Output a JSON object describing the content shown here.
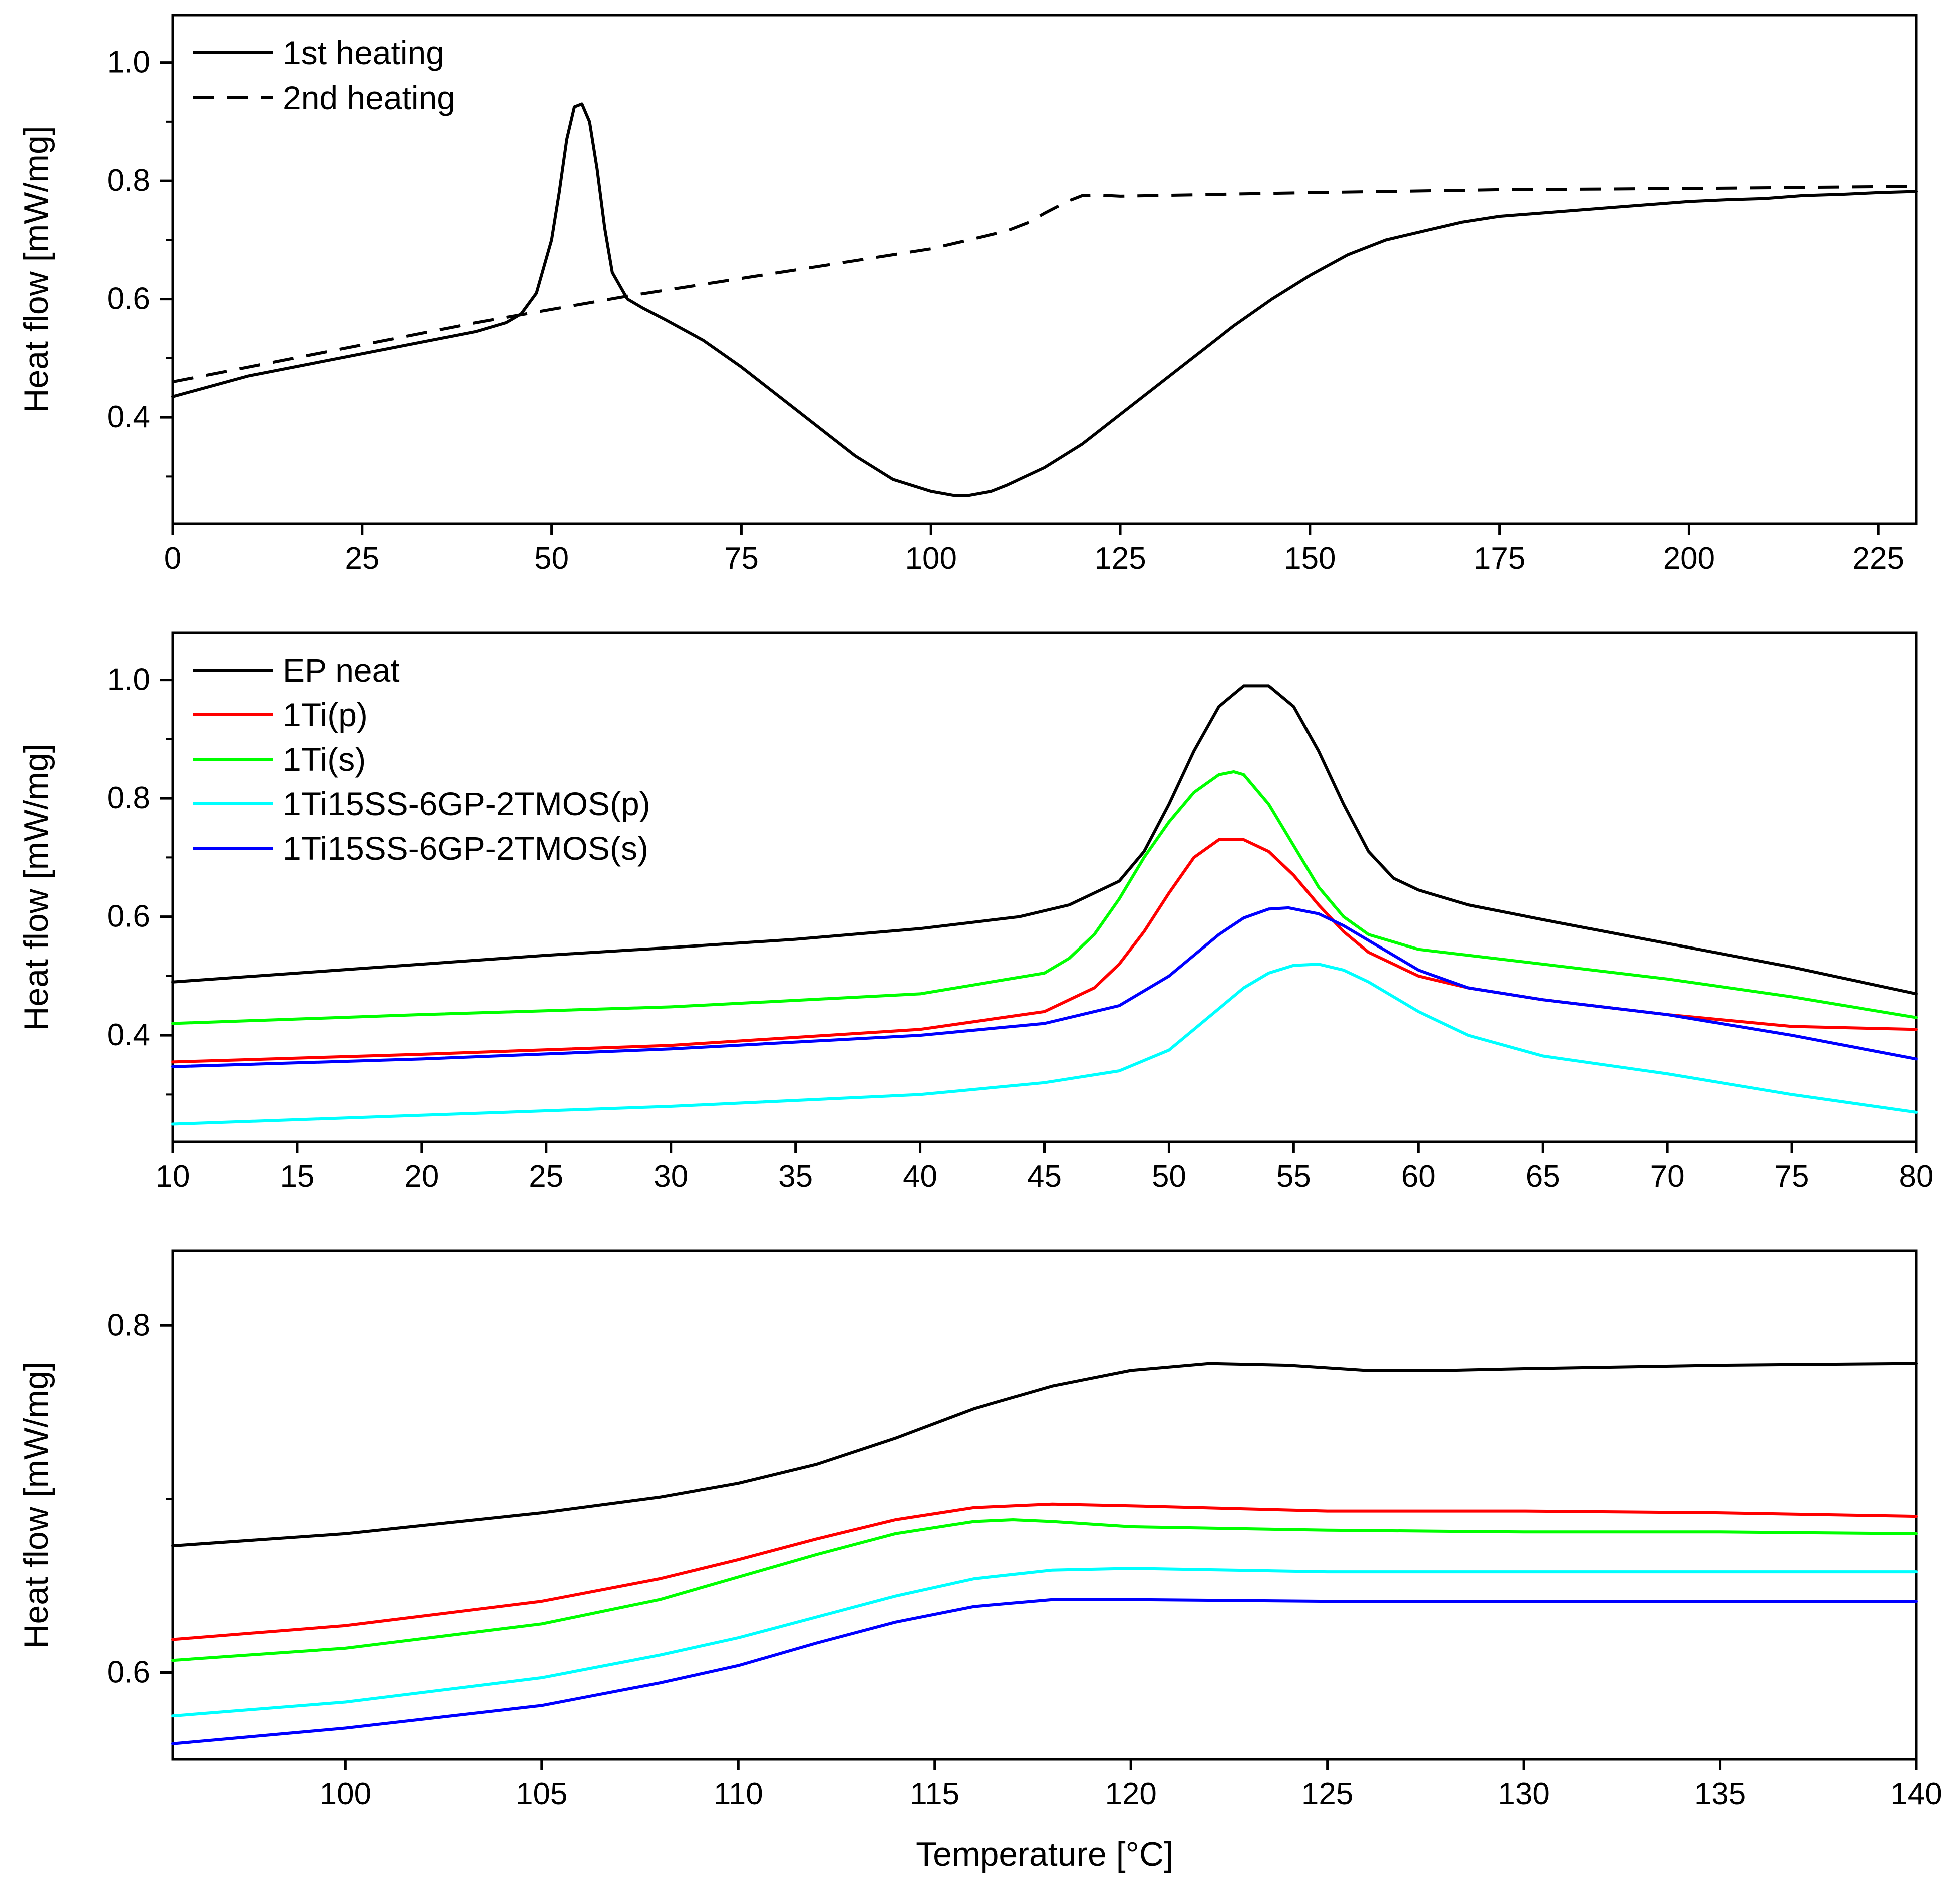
{
  "chart_data": [
    {
      "type": "line",
      "xlabel": "",
      "ylabel": "Heat flow [mW/mg]",
      "xlim": [
        0,
        230
      ],
      "ylim": [
        0.22,
        1.08
      ],
      "xticks": [
        0,
        25,
        50,
        75,
        100,
        125,
        150,
        175,
        200,
        225
      ],
      "xtick_labels": [
        "0",
        "25",
        "50",
        "75",
        "100",
        "125",
        "150",
        "175",
        "200",
        "225"
      ],
      "yticks": [
        0.4,
        0.6,
        0.8,
        1.0
      ],
      "ytick_labels": [
        "0.4",
        "0.6",
        "0.8",
        "1.0"
      ],
      "minor_yticks": [
        0.3,
        0.5,
        0.7,
        0.9
      ],
      "legend_position": "top-left",
      "series": [
        {
          "name": "1st heating",
          "color": "#000000",
          "dash": "solid",
          "x": [
            0,
            10,
            20,
            30,
            40,
            44,
            46,
            48,
            50,
            51,
            52,
            53,
            54,
            55,
            56,
            57,
            58,
            60,
            62,
            65,
            70,
            75,
            80,
            85,
            90,
            95,
            100,
            103,
            105,
            108,
            110,
            115,
            120,
            125,
            130,
            135,
            140,
            145,
            150,
            155,
            160,
            165,
            170,
            175,
            180,
            185,
            190,
            195,
            200,
            205,
            210,
            215,
            220,
            225,
            230
          ],
          "y": [
            0.435,
            0.47,
            0.495,
            0.52,
            0.545,
            0.56,
            0.575,
            0.61,
            0.7,
            0.78,
            0.87,
            0.925,
            0.93,
            0.9,
            0.82,
            0.72,
            0.645,
            0.6,
            0.585,
            0.565,
            0.53,
            0.485,
            0.435,
            0.385,
            0.335,
            0.295,
            0.275,
            0.268,
            0.268,
            0.275,
            0.285,
            0.315,
            0.355,
            0.405,
            0.455,
            0.505,
            0.555,
            0.6,
            0.64,
            0.675,
            0.7,
            0.715,
            0.73,
            0.74,
            0.745,
            0.75,
            0.755,
            0.76,
            0.765,
            0.768,
            0.77,
            0.775,
            0.777,
            0.78,
            0.782
          ]
        },
        {
          "name": "2nd heating",
          "color": "#000000",
          "dash": "dashed",
          "x": [
            0,
            20,
            40,
            60,
            80,
            90,
            100,
            105,
            110,
            113,
            115,
            118,
            120,
            122,
            125,
            150,
            175,
            200,
            225,
            230
          ],
          "y": [
            0.46,
            0.51,
            0.56,
            0.605,
            0.645,
            0.665,
            0.685,
            0.7,
            0.715,
            0.73,
            0.745,
            0.765,
            0.775,
            0.776,
            0.774,
            0.78,
            0.785,
            0.787,
            0.79,
            0.79
          ]
        }
      ]
    },
    {
      "type": "line",
      "xlabel": "",
      "ylabel": "Heat flow  [mW/mg]",
      "xlim": [
        10,
        80
      ],
      "ylim": [
        0.22,
        1.08
      ],
      "xticks": [
        10,
        15,
        20,
        25,
        30,
        35,
        40,
        45,
        50,
        55,
        60,
        65,
        70,
        75,
        80
      ],
      "xtick_labels": [
        "10",
        "15",
        "20",
        "25",
        "30",
        "35",
        "40",
        "45",
        "50",
        "55",
        "60",
        "65",
        "70",
        "75",
        "80"
      ],
      "yticks": [
        0.4,
        0.6,
        0.8,
        1.0
      ],
      "ytick_labels": [
        "0.4",
        "0.6",
        "0.8",
        "1.0"
      ],
      "minor_yticks": [
        0.3,
        0.5,
        0.7,
        0.9
      ],
      "legend_position": "top-left",
      "series": [
        {
          "name": "EP neat",
          "color": "#000000",
          "x": [
            10,
            15,
            20,
            25,
            30,
            35,
            40,
            44,
            46,
            48,
            49,
            50,
            51,
            52,
            53,
            54,
            55,
            56,
            57,
            58,
            59,
            60,
            62,
            65,
            70,
            75,
            80
          ],
          "y": [
            0.49,
            0.505,
            0.52,
            0.535,
            0.548,
            0.562,
            0.58,
            0.6,
            0.62,
            0.66,
            0.71,
            0.79,
            0.88,
            0.955,
            0.99,
            0.99,
            0.955,
            0.88,
            0.79,
            0.71,
            0.665,
            0.645,
            0.62,
            0.595,
            0.555,
            0.515,
            0.47
          ]
        },
        {
          "name": "1Ti(p)",
          "color": "#ff0000",
          "x": [
            10,
            20,
            30,
            40,
            45,
            47,
            48,
            49,
            50,
            51,
            52,
            53,
            54,
            55,
            56,
            57,
            58,
            60,
            62,
            65,
            70,
            75,
            80
          ],
          "y": [
            0.355,
            0.368,
            0.383,
            0.41,
            0.44,
            0.48,
            0.52,
            0.575,
            0.64,
            0.7,
            0.73,
            0.73,
            0.71,
            0.67,
            0.62,
            0.575,
            0.54,
            0.5,
            0.48,
            0.46,
            0.435,
            0.415,
            0.41
          ]
        },
        {
          "name": "1Ti(s)",
          "color": "#00ff00",
          "x": [
            10,
            20,
            30,
            40,
            45,
            46,
            47,
            48,
            49,
            50,
            51,
            52,
            52.6,
            53,
            54,
            55,
            56,
            57,
            58,
            60,
            62,
            65,
            70,
            75,
            80
          ],
          "y": [
            0.42,
            0.435,
            0.448,
            0.47,
            0.505,
            0.53,
            0.57,
            0.63,
            0.7,
            0.76,
            0.81,
            0.84,
            0.845,
            0.84,
            0.79,
            0.72,
            0.65,
            0.6,
            0.57,
            0.545,
            0.535,
            0.52,
            0.495,
            0.465,
            0.43
          ]
        },
        {
          "name": "1Ti15SS-6GP-2TMOS(p)",
          "color": "#00ffff",
          "x": [
            10,
            20,
            30,
            40,
            45,
            48,
            50,
            51,
            52,
            53,
            54,
            55,
            56,
            57,
            58,
            59,
            60,
            62,
            65,
            70,
            75,
            80
          ],
          "y": [
            0.25,
            0.265,
            0.28,
            0.3,
            0.32,
            0.34,
            0.375,
            0.41,
            0.445,
            0.48,
            0.505,
            0.518,
            0.52,
            0.51,
            0.49,
            0.465,
            0.44,
            0.4,
            0.365,
            0.335,
            0.3,
            0.27
          ]
        },
        {
          "name": "1Ti15SS-6GP-2TMOS(s)",
          "color": "#0000ff",
          "x": [
            10,
            20,
            30,
            40,
            45,
            48,
            50,
            51,
            52,
            53,
            54,
            54.8,
            56,
            57,
            58,
            60,
            62,
            65,
            70,
            75,
            80
          ],
          "y": [
            0.347,
            0.36,
            0.377,
            0.4,
            0.42,
            0.45,
            0.5,
            0.535,
            0.57,
            0.598,
            0.613,
            0.615,
            0.605,
            0.585,
            0.56,
            0.51,
            0.48,
            0.46,
            0.435,
            0.4,
            0.36
          ]
        }
      ]
    },
    {
      "type": "line",
      "xlabel": "Temperature [°C]",
      "ylabel": "Heat flow  [mW/mg]",
      "xlim": [
        95.6,
        140
      ],
      "ylim": [
        0.55,
        0.843
      ],
      "xticks": [
        100,
        105,
        110,
        115,
        120,
        125,
        130,
        135,
        140
      ],
      "xtick_labels": [
        "100",
        "105",
        "110",
        "115",
        "120",
        "125",
        "130",
        "135",
        "140"
      ],
      "yticks": [
        0.6,
        0.8
      ],
      "ytick_labels": [
        "0.6",
        "0.8"
      ],
      "minor_yticks": [
        0.7
      ],
      "series": [
        {
          "name": "EP neat",
          "color": "#000000",
          "x": [
            95.6,
            100,
            105,
            108,
            110,
            112,
            114,
            116,
            118,
            120,
            122,
            124,
            126,
            128,
            130,
            135,
            140
          ],
          "y": [
            0.673,
            0.68,
            0.692,
            0.701,
            0.709,
            0.72,
            0.735,
            0.752,
            0.765,
            0.774,
            0.778,
            0.777,
            0.774,
            0.774,
            0.775,
            0.777,
            0.778
          ]
        },
        {
          "name": "1Ti(p)",
          "color": "#ff0000",
          "x": [
            95.6,
            100,
            105,
            108,
            110,
            112,
            114,
            116,
            118,
            120,
            125,
            130,
            135,
            140
          ],
          "y": [
            0.619,
            0.627,
            0.641,
            0.654,
            0.665,
            0.677,
            0.688,
            0.695,
            0.697,
            0.696,
            0.693,
            0.693,
            0.692,
            0.69
          ]
        },
        {
          "name": "1Ti(s)",
          "color": "#00ff00",
          "x": [
            95.6,
            100,
            105,
            108,
            110,
            112,
            114,
            116,
            117,
            118,
            120,
            125,
            130,
            135,
            140
          ],
          "y": [
            0.607,
            0.614,
            0.628,
            0.642,
            0.655,
            0.668,
            0.68,
            0.687,
            0.688,
            0.687,
            0.684,
            0.682,
            0.681,
            0.681,
            0.68
          ]
        },
        {
          "name": "1Ti15SS-6GP-2TMOS(p)",
          "color": "#00ffff",
          "x": [
            95.6,
            100,
            105,
            108,
            110,
            112,
            114,
            116,
            118,
            120,
            125,
            130,
            135,
            140
          ],
          "y": [
            0.575,
            0.583,
            0.597,
            0.61,
            0.62,
            0.632,
            0.644,
            0.654,
            0.659,
            0.66,
            0.658,
            0.658,
            0.658,
            0.658
          ]
        },
        {
          "name": "1Ti15SS-6GP-2TMOS(s)",
          "color": "#0000ff",
          "x": [
            95.6,
            100,
            105,
            108,
            110,
            112,
            114,
            116,
            118,
            120,
            125,
            130,
            135,
            140
          ],
          "y": [
            0.559,
            0.568,
            0.581,
            0.594,
            0.604,
            0.617,
            0.629,
            0.638,
            0.642,
            0.642,
            0.641,
            0.641,
            0.641,
            0.641
          ]
        }
      ]
    }
  ]
}
